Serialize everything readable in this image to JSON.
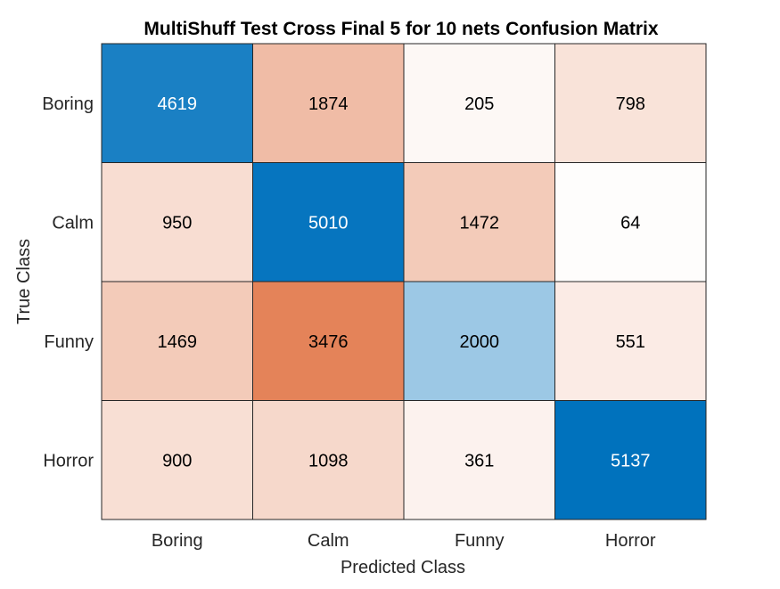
{
  "chart_data": {
    "type": "heatmap",
    "title": "MultiShuff Test Cross Final 5 for 10 nets Confusion Matrix",
    "xlabel": "Predicted Class",
    "ylabel": "True Class",
    "row_labels": [
      "Boring",
      "Calm",
      "Funny",
      "Horror"
    ],
    "col_labels": [
      "Boring",
      "Calm",
      "Funny",
      "Horror"
    ],
    "values": [
      [
        4619,
        1874,
        205,
        798
      ],
      [
        950,
        5010,
        1472,
        64
      ],
      [
        1469,
        3476,
        2000,
        551
      ],
      [
        900,
        1098,
        361,
        5137
      ]
    ],
    "grid": true,
    "colors": {
      "diagonal_high": "#0072bd",
      "diagonal_low": "#ffffff",
      "off_diagonal_high": "#d95319",
      "off_diagonal_low": "#ffffff",
      "cell_border": "#262626",
      "text_dark": "#000000",
      "text_light": "#ffffff"
    }
  }
}
